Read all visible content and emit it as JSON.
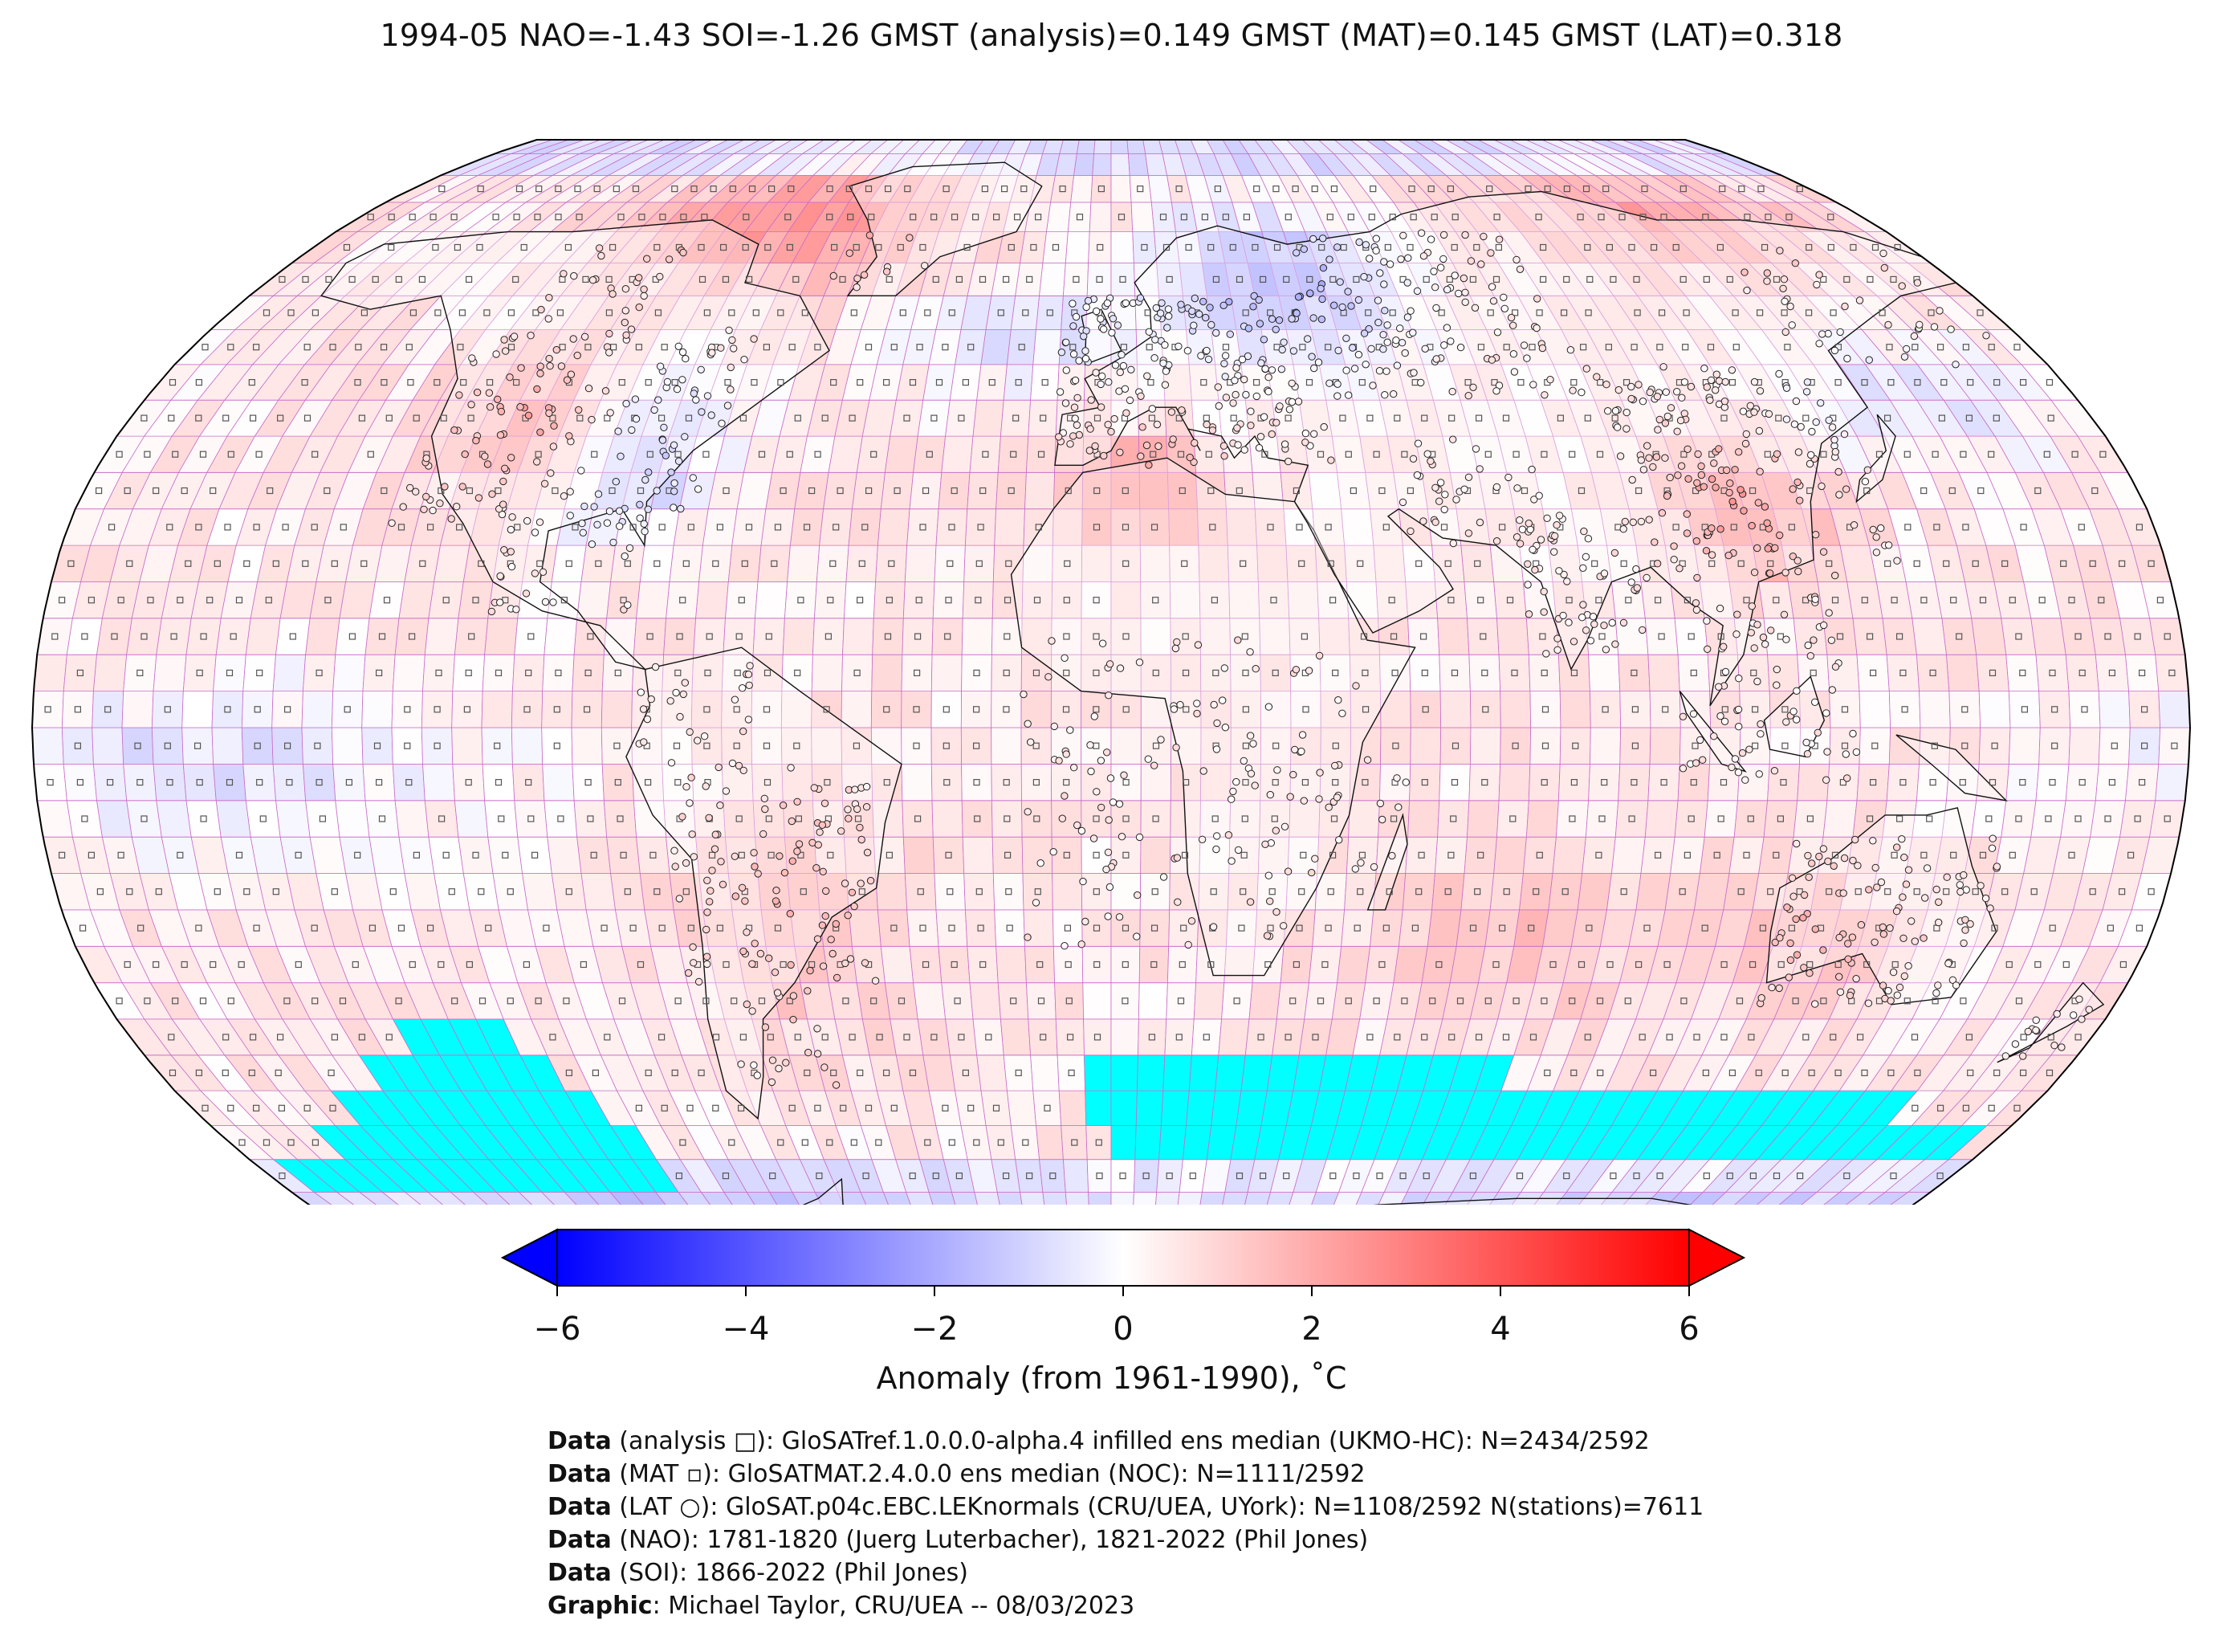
{
  "title": "1994-05 NAO=-1.43 SOI=-1.26 GMST (analysis)=0.149 GMST (MAT)=0.145 GMST (LAT)=0.318",
  "colorbar": {
    "min": -6,
    "max": 6,
    "ticks": [
      "−6",
      "−4",
      "−2",
      "0",
      "2",
      "4",
      "6"
    ],
    "label": "Anomaly (from 1961-1990), ˚C",
    "colors": {
      "low": "#0000ff",
      "mid": "#ffffff",
      "high": "#ff0000"
    }
  },
  "map": {
    "projection": "Robinson",
    "grid_resolution_deg": 5,
    "land_fill": "#ffffff",
    "gridline_color": "#c86ec8",
    "missing_color": "#00ffff",
    "station_marker": "open-circle"
  },
  "credits": [
    {
      "bold": "Data",
      "rest": " (analysis □): GloSATref.1.0.0.0-alpha.4 infilled ens median (UKMO-HC): N=2434/2592"
    },
    {
      "bold": "Data",
      "rest": " (MAT ▫): GloSATMAT.2.4.0.0 ens median (NOC): N=1111/2592"
    },
    {
      "bold": "Data",
      "rest": " (LAT ○): GloSAT.p04c.EBC.LEKnormals (CRU/UEA, UYork): N=1108/2592 N(stations)=7611"
    },
    {
      "bold": "Data",
      "rest": " (NAO): 1781-1820 (Juerg Luterbacher), 1821-2022 (Phil Jones)"
    },
    {
      "bold": "Data",
      "rest": " (SOI): 1866-2022 (Phil Jones)"
    },
    {
      "bold": "Graphic",
      "rest": ": Michael Taylor, CRU/UEA -- 08/03/2023"
    }
  ]
}
